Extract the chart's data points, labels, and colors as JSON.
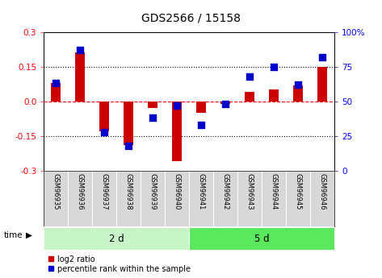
{
  "title": "GDS2566 / 15158",
  "samples": [
    "GSM96935",
    "GSM96936",
    "GSM96937",
    "GSM96938",
    "GSM96939",
    "GSM96940",
    "GSM96941",
    "GSM96942",
    "GSM96943",
    "GSM96944",
    "GSM96945",
    "GSM96946"
  ],
  "log2_ratio": [
    0.08,
    0.21,
    -0.13,
    -0.19,
    -0.03,
    -0.26,
    -0.05,
    -0.01,
    0.04,
    0.05,
    0.07,
    0.15
  ],
  "percentile_rank": [
    63,
    87,
    28,
    18,
    38,
    47,
    33,
    48,
    68,
    75,
    62,
    82
  ],
  "groups": [
    {
      "label": "2 d",
      "start": 0,
      "end": 6,
      "color": "#C8F5C8"
    },
    {
      "label": "5 d",
      "start": 6,
      "end": 12,
      "color": "#5CE85C"
    }
  ],
  "ylim": [
    -0.3,
    0.3
  ],
  "yticks_left": [
    -0.3,
    -0.15,
    0.0,
    0.15,
    0.3
  ],
  "yticks_right": [
    0,
    25,
    50,
    75,
    100
  ],
  "bar_color": "#CC0000",
  "dot_color": "#0000CC",
  "cell_color": "#D8D8D8",
  "cell_border_color": "#FFFFFF",
  "background_color": "#ffffff",
  "time_label": "time"
}
